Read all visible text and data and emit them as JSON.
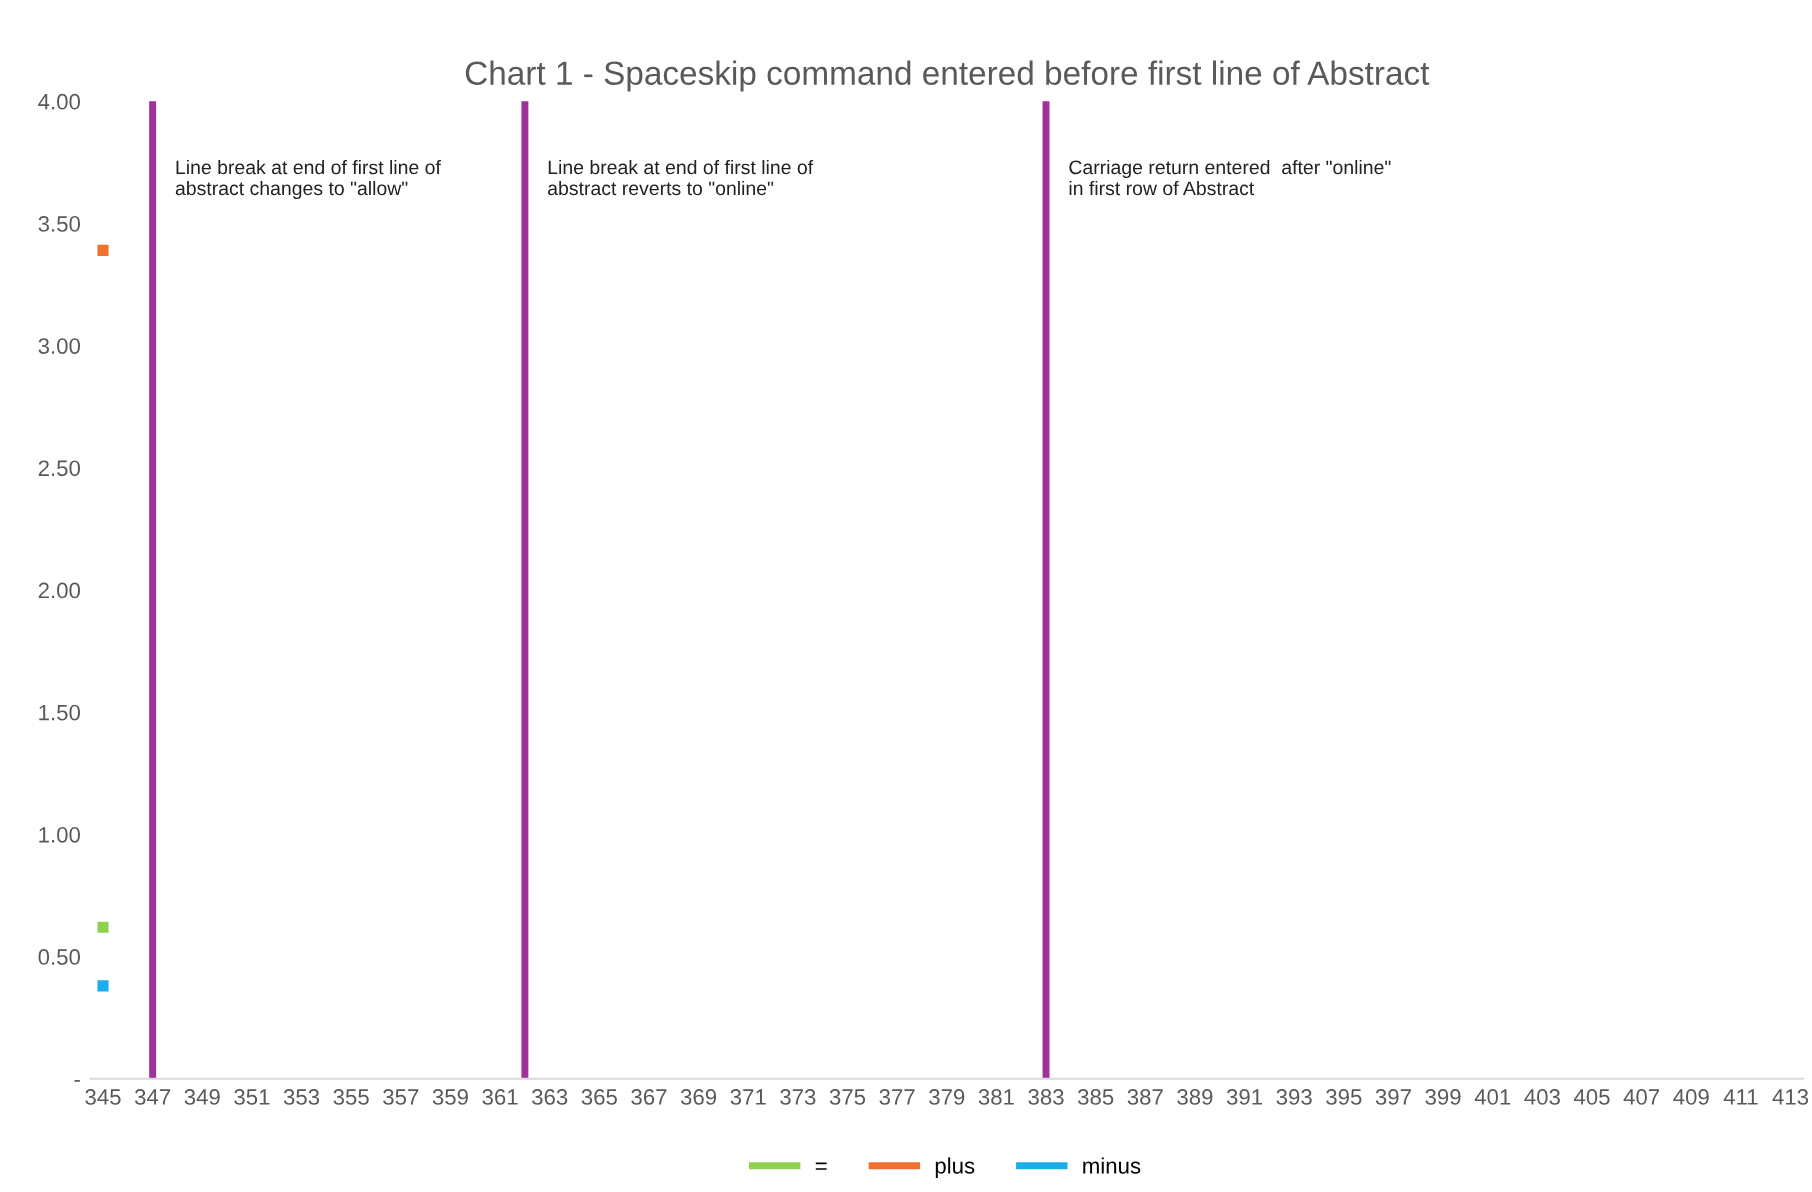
{
  "chart_data": {
    "type": "line",
    "title": "Chart 1 - Spaceskip command entered before first line of Abstract",
    "xlim": [
      344.5,
      413.5
    ],
    "xticks": [
      345,
      347,
      349,
      351,
      353,
      355,
      357,
      359,
      361,
      363,
      365,
      367,
      369,
      371,
      373,
      375,
      377,
      379,
      381,
      383,
      385,
      387,
      389,
      391,
      393,
      395,
      397,
      399,
      401,
      403,
      405,
      407,
      409,
      411,
      413
    ],
    "ylim": [
      0,
      4
    ],
    "yticks": [
      {
        "value": 0,
        "label": "-"
      },
      {
        "value": 0.5,
        "label": "0.50"
      },
      {
        "value": 1,
        "label": "1.00"
      },
      {
        "value": 1.5,
        "label": "1.50"
      },
      {
        "value": 2,
        "label": "2.00"
      },
      {
        "value": 2.5,
        "label": "2.50"
      },
      {
        "value": 3,
        "label": "3.00"
      },
      {
        "value": 3.5,
        "label": "3.50"
      },
      {
        "value": 4,
        "label": "4.00"
      }
    ],
    "x": [
      345
    ],
    "series": [
      {
        "name": "=",
        "color": "#8fd14f",
        "values": [
          0.62
        ]
      },
      {
        "name": "plus",
        "color": "#f07030",
        "values": [
          3.39
        ]
      },
      {
        "name": "minus",
        "color": "#1aaeea",
        "values": [
          0.38
        ]
      }
    ],
    "ref_lines": [
      {
        "axis": "x",
        "value": 347,
        "label": "Line break at end of first line of\nabstract changes to \"allow\"",
        "color": "#a0309a"
      },
      {
        "axis": "x",
        "value": 362,
        "label": "Line break at end of first line of\nabstract reverts to \"online\"",
        "color": "#a0309a"
      },
      {
        "axis": "x",
        "value": 383,
        "label": "Carriage return entered  after \"online\"\nin first row of Abstract",
        "color": "#a0309a"
      }
    ],
    "grid": false,
    "legend": "bottom",
    "marker": "square"
  }
}
